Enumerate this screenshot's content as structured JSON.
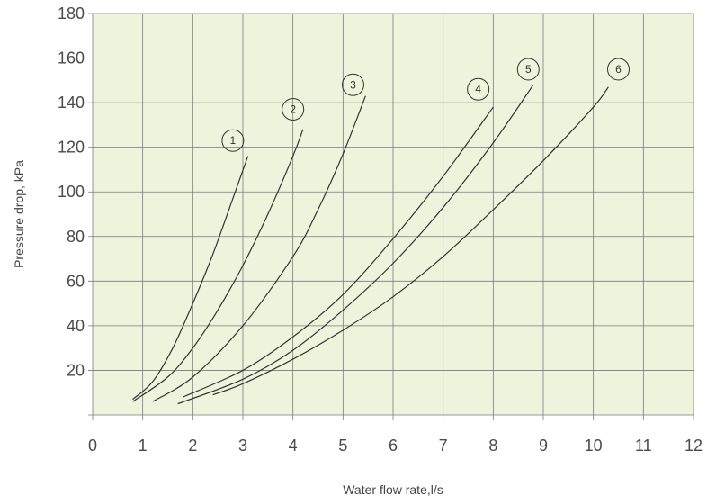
{
  "chart_data": {
    "type": "line",
    "title": "",
    "xlabel": "Water flow rate,l/s",
    "ylabel": "Pressure drop, kPa",
    "xlim": [
      0,
      12
    ],
    "ylim": [
      0,
      180
    ],
    "x_ticks": [
      0,
      1,
      2,
      3,
      4,
      5,
      6,
      7,
      8,
      9,
      10,
      11,
      12
    ],
    "y_ticks": [
      20,
      40,
      60,
      80,
      100,
      120,
      140,
      160,
      180
    ],
    "grid": true,
    "legend": "none",
    "colors": {
      "plot_bg": "#eef4dc",
      "grid": "#7a7a7a",
      "line": "#333333"
    },
    "series": [
      {
        "label": "1",
        "marker_at": [
          2.8,
          123
        ],
        "points": [
          [
            0.8,
            7
          ],
          [
            1.2,
            15
          ],
          [
            1.6,
            30
          ],
          [
            2.0,
            50
          ],
          [
            2.4,
            72
          ],
          [
            2.8,
            97
          ],
          [
            3.1,
            116
          ]
        ]
      },
      {
        "label": "2",
        "marker_at": [
          4.0,
          137
        ],
        "points": [
          [
            0.8,
            6
          ],
          [
            1.5,
            17
          ],
          [
            2.0,
            30
          ],
          [
            2.5,
            47
          ],
          [
            3.0,
            67
          ],
          [
            3.5,
            90
          ],
          [
            4.0,
            116
          ],
          [
            4.2,
            128
          ]
        ]
      },
      {
        "label": "3",
        "marker_at": [
          5.2,
          148
        ],
        "points": [
          [
            1.2,
            6
          ],
          [
            2.0,
            17
          ],
          [
            3.0,
            40
          ],
          [
            4.0,
            71
          ],
          [
            4.5,
            92
          ],
          [
            5.0,
            117
          ],
          [
            5.45,
            143
          ]
        ]
      },
      {
        "label": "4",
        "marker_at": [
          7.7,
          146
        ],
        "points": [
          [
            1.8,
            8
          ],
          [
            3.0,
            20
          ],
          [
            4.0,
            35
          ],
          [
            5.0,
            54
          ],
          [
            6.0,
            79
          ],
          [
            7.0,
            107
          ],
          [
            8.0,
            138
          ]
        ]
      },
      {
        "label": "5",
        "marker_at": [
          8.7,
          155
        ],
        "points": [
          [
            1.7,
            5
          ],
          [
            3.0,
            16
          ],
          [
            4.0,
            29
          ],
          [
            5.0,
            47
          ],
          [
            6.0,
            68
          ],
          [
            7.0,
            93
          ],
          [
            8.0,
            122
          ],
          [
            8.8,
            148
          ]
        ]
      },
      {
        "label": "6",
        "marker_at": [
          10.5,
          155
        ],
        "points": [
          [
            2.4,
            9
          ],
          [
            3.0,
            14
          ],
          [
            4.0,
            25
          ],
          [
            5.0,
            38
          ],
          [
            6.0,
            53
          ],
          [
            7.0,
            71
          ],
          [
            8.0,
            92
          ],
          [
            9.0,
            114
          ],
          [
            10.0,
            138
          ],
          [
            10.3,
            147
          ]
        ]
      }
    ]
  }
}
